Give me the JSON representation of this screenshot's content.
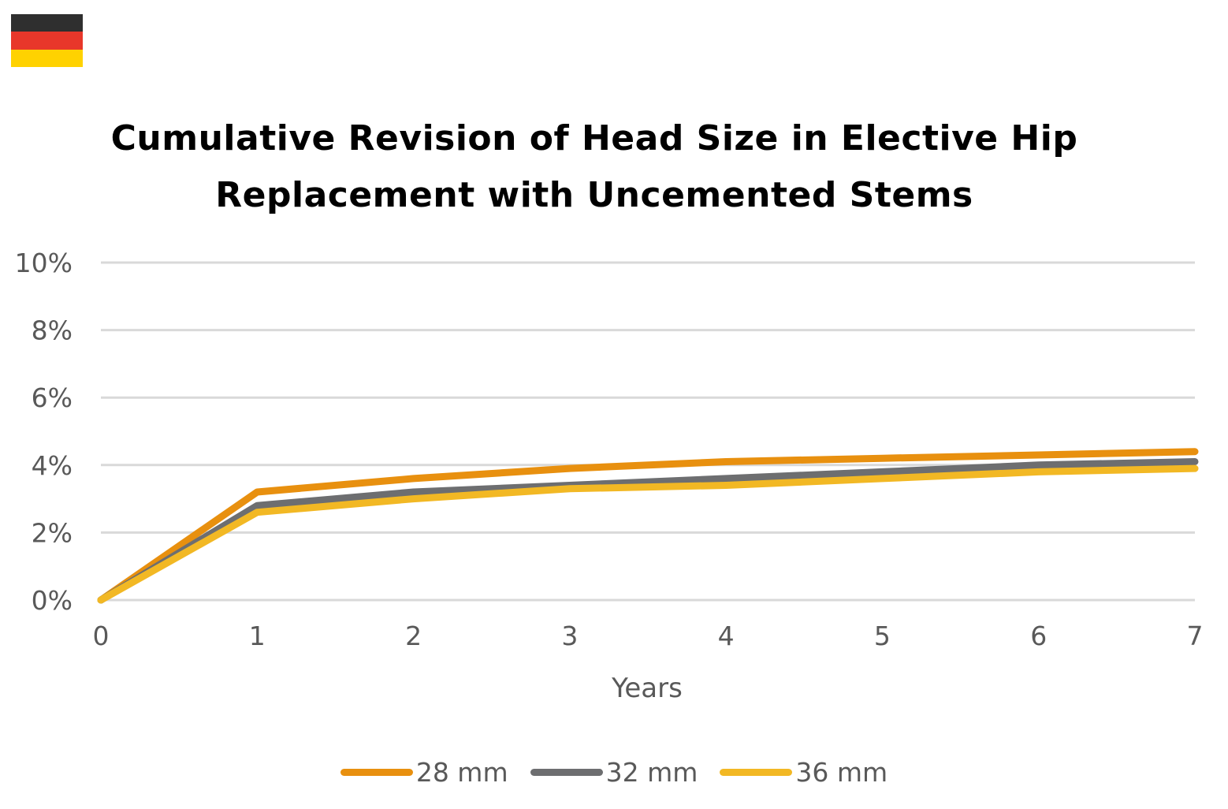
{
  "flag": {
    "icon": "germany-flag-icon",
    "colors": [
      "#2f2f2f",
      "#e8372a",
      "#ffd200"
    ]
  },
  "chart_data": {
    "type": "line",
    "title": "Cumulative Revision of Head Size in Elective Hip Replacement with Uncemented Stems",
    "xlabel": "Years",
    "ylabel": "",
    "x": [
      0,
      1,
      2,
      3,
      4,
      5,
      6,
      7
    ],
    "xlim": [
      0,
      7
    ],
    "ylim": [
      0,
      10
    ],
    "yticks": [
      0,
      2,
      4,
      6,
      8,
      10
    ],
    "ytick_labels": [
      "0%",
      "2%",
      "4%",
      "6%",
      "8%",
      "10%"
    ],
    "xtick_labels": [
      "0",
      "1",
      "2",
      "3",
      "4",
      "5",
      "6",
      "7"
    ],
    "grid": true,
    "legend_position": "bottom",
    "series": [
      {
        "name": "28 mm",
        "color": "#e8900f",
        "values": [
          0,
          3.2,
          3.6,
          3.9,
          4.1,
          4.2,
          4.3,
          4.4
        ]
      },
      {
        "name": "32 mm",
        "color": "#6d6e70",
        "values": [
          0,
          2.8,
          3.2,
          3.4,
          3.6,
          3.8,
          4.0,
          4.1
        ]
      },
      {
        "name": "36 mm",
        "color": "#f2b824",
        "values": [
          0,
          2.6,
          3.0,
          3.3,
          3.4,
          3.6,
          3.8,
          3.9
        ]
      }
    ]
  }
}
